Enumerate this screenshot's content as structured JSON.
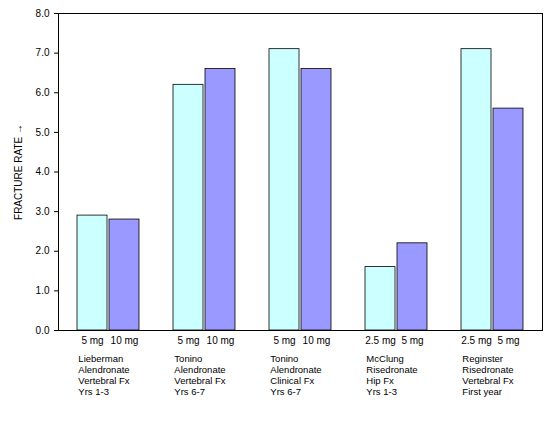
{
  "chart_data": {
    "type": "bar",
    "y_label": "FRACTURE RATE",
    "categories": [
      "5 mg",
      "10 mg",
      "5 mg",
      "10 mg",
      "5 mg",
      "10 mg",
      "2.5 mg",
      "5 mg",
      "2.5 mg",
      "5 mg"
    ],
    "values": [
      2.9,
      2.8,
      6.2,
      6.6,
      7.1,
      6.6,
      1.6,
      2.2,
      7.1,
      5.6
    ],
    "colors": [
      "#ccffff",
      "#9999ff",
      "#ccffff",
      "#9999ff",
      "#ccffff",
      "#9999ff",
      "#ccffff",
      "#9999ff",
      "#ccffff",
      "#9999ff"
    ],
    "groups": [
      "Lieberman\nAlendronate\nVertebral Fx\nYrs 1-3",
      "Tonino\nAlendronate\nVertebral Fx\nYrs 6-7",
      "Tonino\nAlendronate\nClinical Fx\nYrs 6-7",
      "McClung\nRisedronate\nHip Fx\nYrs 1-3",
      "Reginster\nRisedronate\nVertebral Fx\nFirst year"
    ],
    "ylim": [
      0,
      8
    ],
    "yticks": [
      {
        "value": 0,
        "label": "0.0"
      },
      {
        "value": 1,
        "label": "1.0"
      },
      {
        "value": 2,
        "label": "2.0"
      },
      {
        "value": 3,
        "label": "3.0"
      },
      {
        "value": 4,
        "label": "4.0"
      },
      {
        "value": 5,
        "label": "5.0"
      },
      {
        "value": 6,
        "label": "6.0"
      },
      {
        "value": 7,
        "label": "7.0"
      },
      {
        "value": 8,
        "label": "8.0"
      }
    ],
    "grid": false
  }
}
